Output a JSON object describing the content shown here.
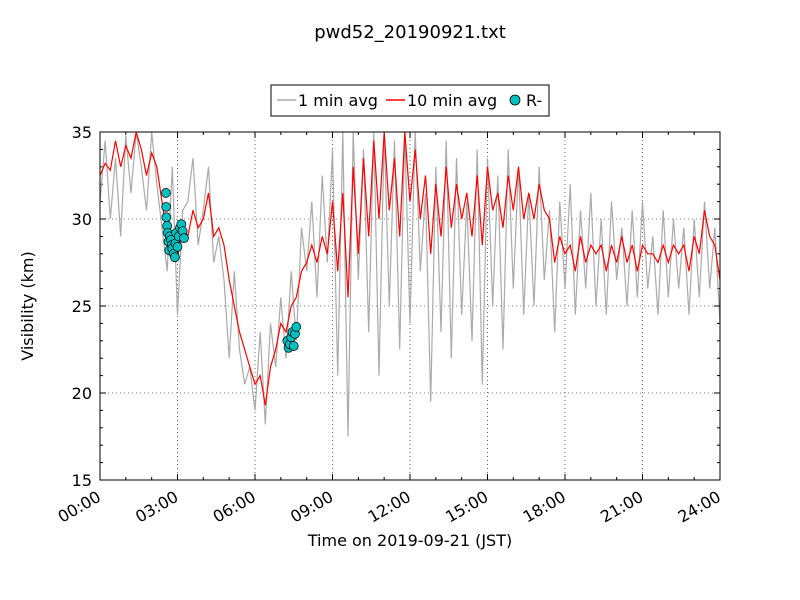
{
  "chart_data": {
    "type": "line",
    "title": "pwd52_20190921.txt",
    "xlabel": "Time on 2019-09-21 (JST)",
    "ylabel": "Visibility (km)",
    "xlim": [
      "00:00",
      "24:00"
    ],
    "ylim": [
      15,
      35
    ],
    "grid": true,
    "legend_position": "top-center",
    "x_ticks": [
      "00:00",
      "03:00",
      "06:00",
      "09:00",
      "12:00",
      "15:00",
      "18:00",
      "21:00",
      "24:00"
    ],
    "y_ticks": [
      15,
      20,
      25,
      30,
      35
    ],
    "series": [
      {
        "name": "1 min avg",
        "type": "line",
        "color": "#aaaaaa",
        "x_hours": [
          0.0,
          0.2,
          0.4,
          0.6,
          0.8,
          1.0,
          1.2,
          1.4,
          1.6,
          1.8,
          2.0,
          2.2,
          2.4,
          2.6,
          2.8,
          3.0,
          3.2,
          3.4,
          3.6,
          3.8,
          4.0,
          4.2,
          4.4,
          4.6,
          4.8,
          5.0,
          5.2,
          5.4,
          5.6,
          5.8,
          6.0,
          6.2,
          6.4,
          6.6,
          6.8,
          7.0,
          7.2,
          7.4,
          7.6,
          7.8,
          8.0,
          8.2,
          8.4,
          8.6,
          8.8,
          9.0,
          9.2,
          9.4,
          9.6,
          9.8,
          10.0,
          10.2,
          10.4,
          10.6,
          10.8,
          11.0,
          11.2,
          11.4,
          11.6,
          11.8,
          12.0,
          12.2,
          12.4,
          12.6,
          12.8,
          13.0,
          13.2,
          13.4,
          13.6,
          13.8,
          14.0,
          14.2,
          14.4,
          14.6,
          14.8,
          15.0,
          15.2,
          15.4,
          15.6,
          15.8,
          16.0,
          16.2,
          16.4,
          16.6,
          16.8,
          17.0,
          17.2,
          17.4,
          17.6,
          17.8,
          18.0,
          18.2,
          18.4,
          18.6,
          18.8,
          19.0,
          19.2,
          19.4,
          19.6,
          19.8,
          20.0,
          20.2,
          20.4,
          20.6,
          20.8,
          21.0,
          21.2,
          21.4,
          21.6,
          21.8,
          22.0,
          22.2,
          22.4,
          22.6,
          22.8,
          23.0,
          23.2,
          23.4,
          23.6,
          23.8,
          24.0
        ],
        "values": [
          31.0,
          34.5,
          30.0,
          33.5,
          29.0,
          34.8,
          31.5,
          35.0,
          33.0,
          30.5,
          35.0,
          32.0,
          29.5,
          27.0,
          33.0,
          24.5,
          30.5,
          31.0,
          33.5,
          28.5,
          30.5,
          33.0,
          27.5,
          29.0,
          26.5,
          22.0,
          27.0,
          22.5,
          20.5,
          21.5,
          19.0,
          23.5,
          18.2,
          24.0,
          21.5,
          25.5,
          22.0,
          27.0,
          23.0,
          29.5,
          27.0,
          31.0,
          25.5,
          32.5,
          27.5,
          34.0,
          21.0,
          35.0,
          17.5,
          35.0,
          26.5,
          34.0,
          23.5,
          35.0,
          21.0,
          35.0,
          25.0,
          34.5,
          22.5,
          35.0,
          24.0,
          35.0,
          27.0,
          31.5,
          19.5,
          33.0,
          23.5,
          34.5,
          22.0,
          33.5,
          24.5,
          31.0,
          23.0,
          34.0,
          20.5,
          33.5,
          25.0,
          32.5,
          22.5,
          34.0,
          26.0,
          33.0,
          24.5,
          31.5,
          25.0,
          33.0,
          26.5,
          30.5,
          23.5,
          31.0,
          26.0,
          32.0,
          24.5,
          30.5,
          26.0,
          31.5,
          25.0,
          30.0,
          24.5,
          31.0,
          26.5,
          29.5,
          25.0,
          30.5,
          25.5,
          31.0,
          26.0,
          29.0,
          24.5,
          30.5,
          25.5,
          30.0,
          26.0,
          29.5,
          24.5,
          30.0,
          25.5,
          31.0,
          26.0,
          29.5,
          24.0
        ]
      },
      {
        "name": "10 min avg",
        "type": "line",
        "color": "#ff0000",
        "x_hours": [
          0.0,
          0.2,
          0.4,
          0.6,
          0.8,
          1.0,
          1.2,
          1.4,
          1.6,
          1.8,
          2.0,
          2.2,
          2.4,
          2.6,
          2.8,
          3.0,
          3.2,
          3.4,
          3.6,
          3.8,
          4.0,
          4.2,
          4.4,
          4.6,
          4.8,
          5.0,
          5.2,
          5.4,
          5.6,
          5.8,
          6.0,
          6.2,
          6.4,
          6.6,
          6.8,
          7.0,
          7.2,
          7.4,
          7.6,
          7.8,
          8.0,
          8.2,
          8.4,
          8.6,
          8.8,
          9.0,
          9.2,
          9.4,
          9.6,
          9.8,
          10.0,
          10.2,
          10.4,
          10.6,
          10.8,
          11.0,
          11.2,
          11.4,
          11.6,
          11.8,
          12.0,
          12.2,
          12.4,
          12.6,
          12.8,
          13.0,
          13.2,
          13.4,
          13.6,
          13.8,
          14.0,
          14.2,
          14.4,
          14.6,
          14.8,
          15.0,
          15.2,
          15.4,
          15.6,
          15.8,
          16.0,
          16.2,
          16.4,
          16.6,
          16.8,
          17.0,
          17.2,
          17.4,
          17.6,
          17.8,
          18.0,
          18.2,
          18.4,
          18.6,
          18.8,
          19.0,
          19.2,
          19.4,
          19.6,
          19.8,
          20.0,
          20.2,
          20.4,
          20.6,
          20.8,
          21.0,
          21.2,
          21.4,
          21.6,
          21.8,
          22.0,
          22.2,
          22.4,
          22.6,
          22.8,
          23.0,
          23.2,
          23.4,
          23.6,
          23.8,
          24.0
        ],
        "values": [
          32.5,
          33.2,
          32.8,
          34.5,
          33.0,
          34.2,
          33.5,
          35.0,
          34.0,
          32.5,
          33.8,
          33.0,
          31.0,
          29.0,
          28.5,
          27.8,
          29.5,
          29.0,
          30.5,
          29.5,
          30.0,
          31.5,
          29.0,
          29.5,
          28.5,
          26.5,
          25.0,
          23.5,
          22.5,
          21.5,
          20.5,
          21.0,
          19.3,
          21.5,
          22.5,
          24.0,
          23.5,
          25.0,
          25.5,
          27.0,
          27.5,
          28.5,
          27.5,
          29.0,
          28.0,
          31.0,
          27.0,
          31.5,
          25.5,
          33.0,
          28.0,
          33.5,
          29.0,
          34.5,
          30.0,
          35.0,
          30.5,
          33.5,
          29.0,
          35.0,
          31.0,
          34.0,
          30.0,
          32.5,
          28.0,
          32.0,
          29.0,
          33.0,
          29.5,
          32.0,
          30.0,
          31.5,
          29.0,
          32.5,
          28.5,
          33.0,
          30.5,
          31.5,
          29.5,
          32.5,
          30.5,
          33.0,
          30.0,
          31.5,
          30.0,
          32.0,
          30.5,
          30.0,
          27.5,
          29.0,
          28.0,
          28.5,
          27.0,
          29.0,
          27.5,
          28.5,
          28.0,
          28.5,
          27.0,
          28.5,
          27.5,
          29.0,
          27.5,
          28.5,
          27.0,
          28.5,
          28.0,
          28.0,
          27.5,
          28.5,
          27.5,
          28.5,
          28.0,
          28.5,
          27.0,
          29.0,
          28.0,
          30.5,
          29.0,
          28.5,
          26.5
        ]
      },
      {
        "name": "R-",
        "type": "scatter",
        "color": "#00bfbf",
        "x_hours": [
          2.55,
          2.56,
          2.57,
          2.6,
          2.62,
          2.65,
          2.68,
          2.7,
          2.75,
          2.78,
          2.8,
          2.85,
          2.9,
          2.92,
          2.95,
          3.0,
          3.05,
          3.1,
          3.15,
          3.2,
          3.25,
          7.25,
          7.3,
          7.35,
          7.4,
          7.45,
          7.5,
          7.55,
          7.6
        ],
        "values": [
          31.5,
          30.7,
          30.1,
          29.6,
          29.2,
          28.7,
          28.2,
          29.0,
          28.8,
          28.5,
          28.3,
          28.0,
          27.8,
          28.6,
          29.2,
          28.4,
          29.0,
          29.5,
          29.7,
          29.3,
          28.9,
          23.0,
          22.6,
          22.8,
          23.2,
          23.5,
          22.7,
          23.4,
          23.8
        ]
      }
    ]
  }
}
